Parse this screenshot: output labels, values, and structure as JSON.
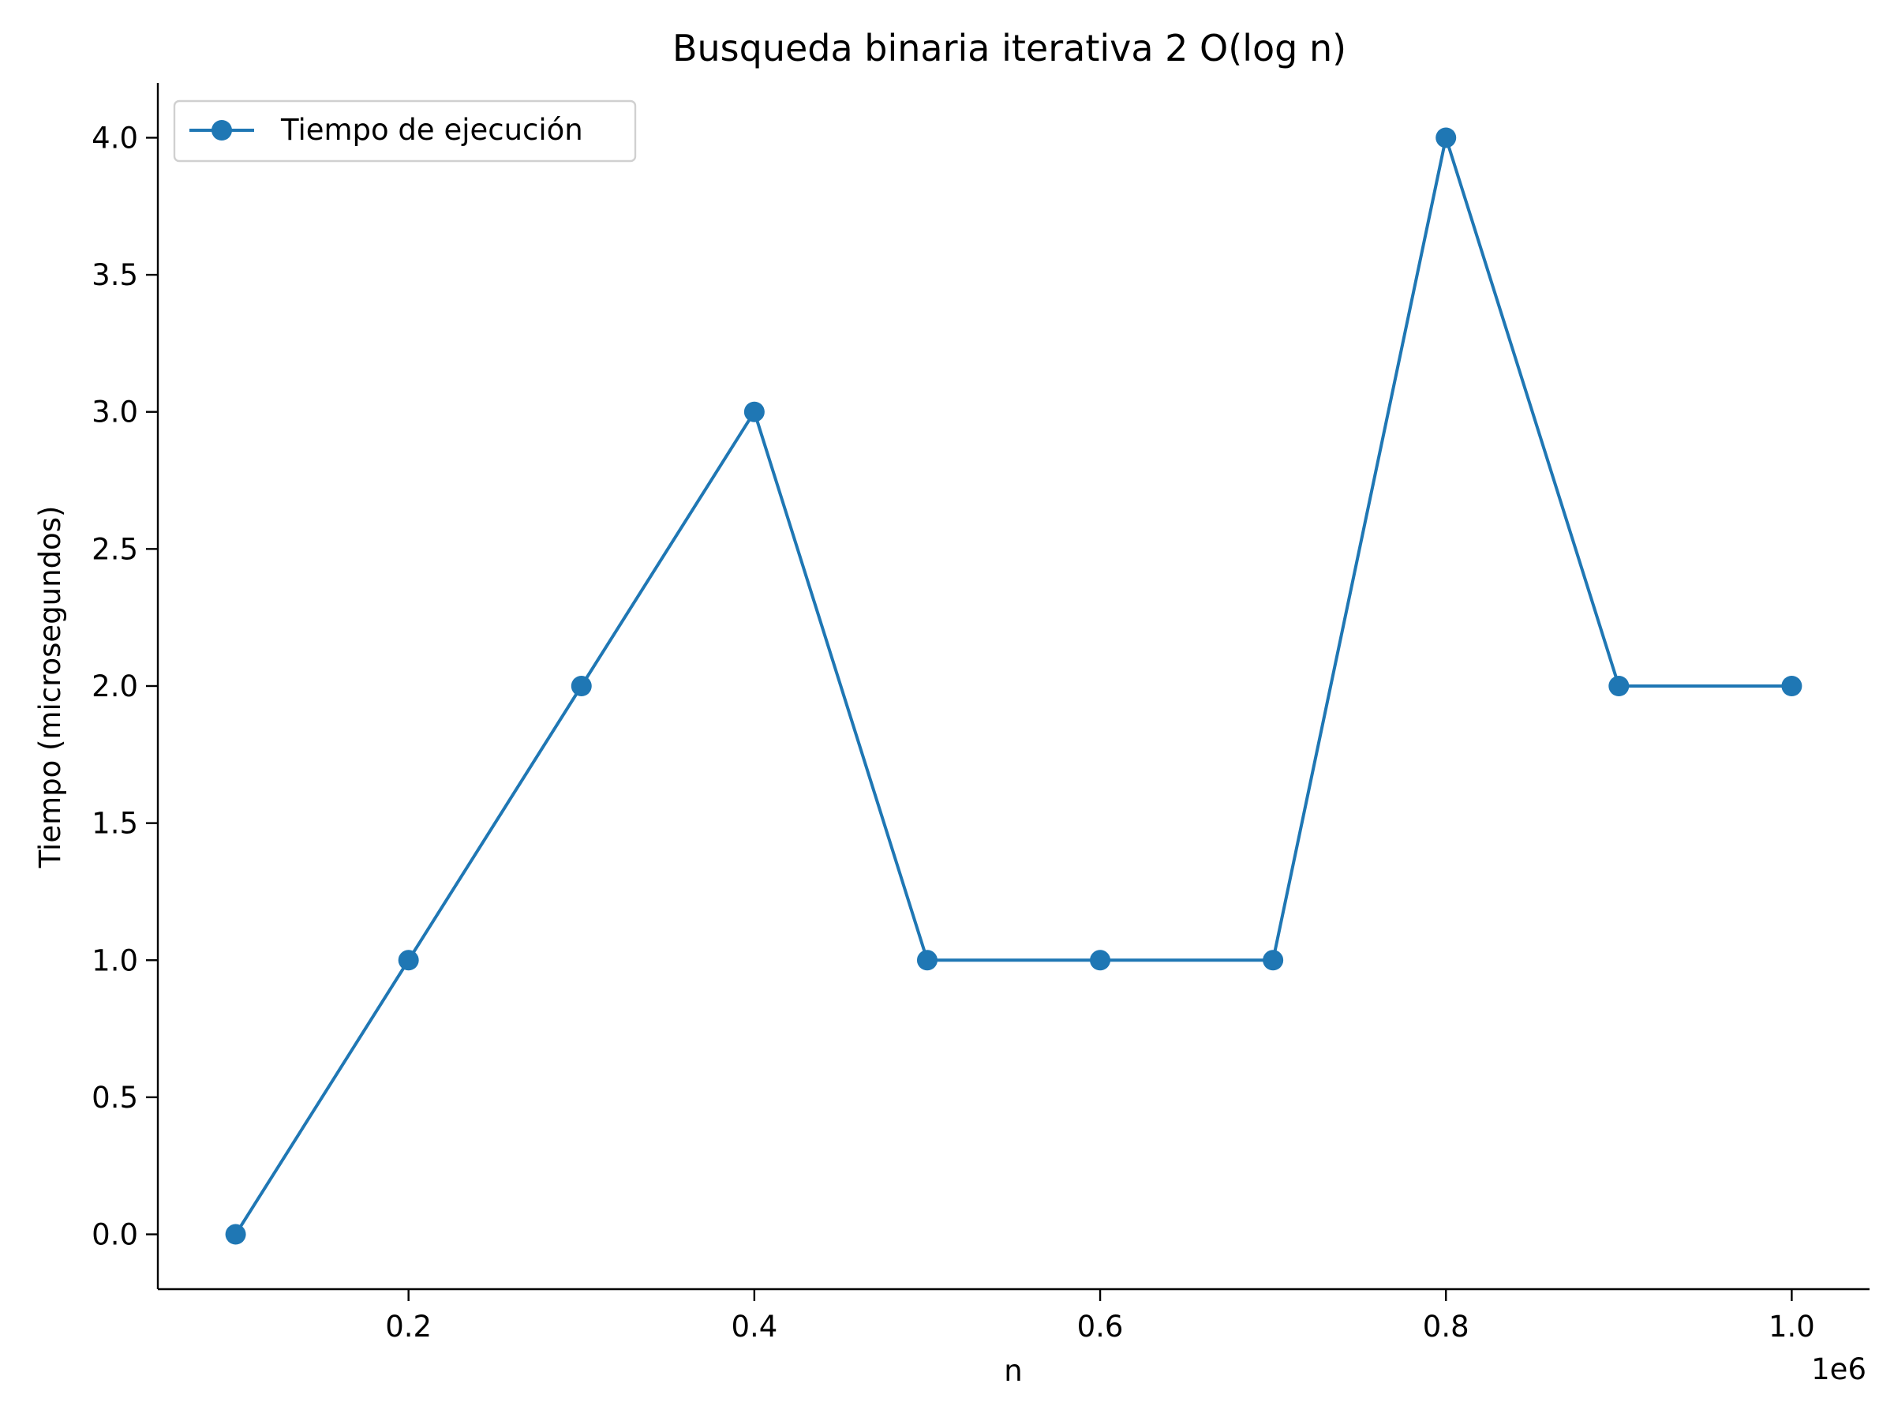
{
  "chart_data": {
    "type": "line",
    "title": "Busqueda binaria iterativa 2 O(log n)",
    "xlabel": "n",
    "ylabel": "Tiempo (microsegundos)",
    "x_offset_label": "1e6",
    "x": [
      100000,
      200000,
      300000,
      400000,
      500000,
      600000,
      700000,
      800000,
      900000,
      1000000
    ],
    "x_ticks": [
      200000,
      400000,
      600000,
      800000,
      1000000
    ],
    "x_tick_labels": [
      "0.2",
      "0.4",
      "0.6",
      "0.8",
      "1.0"
    ],
    "y_ticks": [
      0.0,
      0.5,
      1.0,
      1.5,
      2.0,
      2.5,
      3.0,
      3.5,
      4.0
    ],
    "y_tick_labels": [
      "0.0",
      "0.5",
      "1.0",
      "1.5",
      "2.0",
      "2.5",
      "3.0",
      "3.5",
      "4.0"
    ],
    "xlim": [
      55000,
      1045000
    ],
    "ylim": [
      -0.2,
      4.2
    ],
    "series": [
      {
        "name": "Tiempo de ejecución",
        "values": [
          0,
          1,
          2,
          3,
          1,
          1,
          1,
          4,
          2,
          2
        ],
        "color": "#1f77b4",
        "marker": "circle"
      }
    ],
    "legend_position": "top-left",
    "grid": false,
    "spines": [
      "left",
      "bottom"
    ]
  }
}
